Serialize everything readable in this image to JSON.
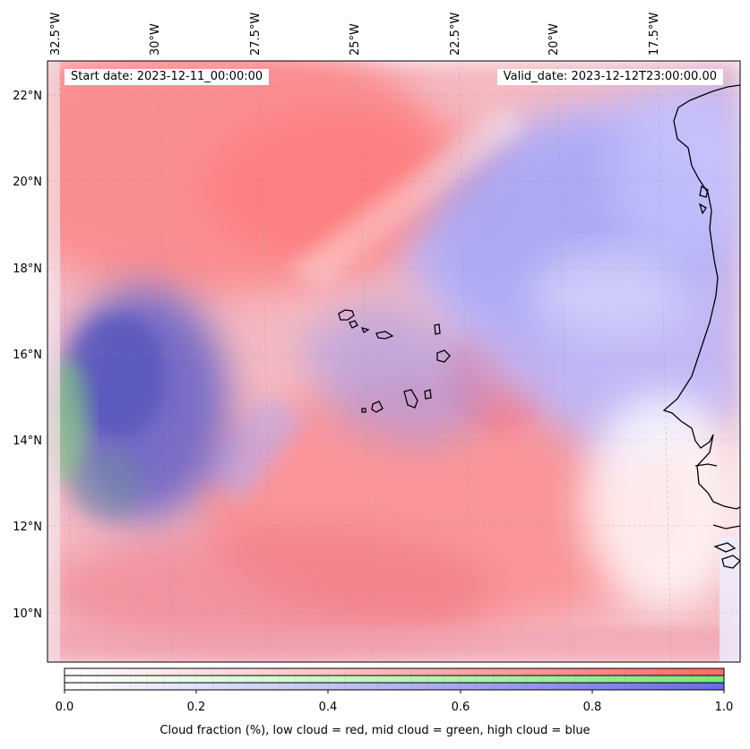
{
  "map": {
    "lon_labels": [
      "32.5°W",
      "30°W",
      "27.5°W",
      "25°W",
      "22.5°W",
      "20°W",
      "17.5°W"
    ],
    "lat_labels": [
      "22°N",
      "20°N",
      "18°N",
      "16°N",
      "14°N",
      "12°N",
      "10°N"
    ],
    "start_date": "Start date: 2023-12-11_00:00:00",
    "valid_date": "Valid_date: 2023-12-12T23:00:00.00"
  },
  "colorbar": {
    "ticks": [
      "0.0",
      "0.2",
      "0.4",
      "0.6",
      "0.8",
      "1.0"
    ],
    "label": "Cloud fraction (%), low cloud = red, mid cloud = green, high cloud = blue",
    "colors": {
      "low": "#ff6a6a",
      "mid": "#7ae87a",
      "high": "#6a6ae8"
    }
  }
}
